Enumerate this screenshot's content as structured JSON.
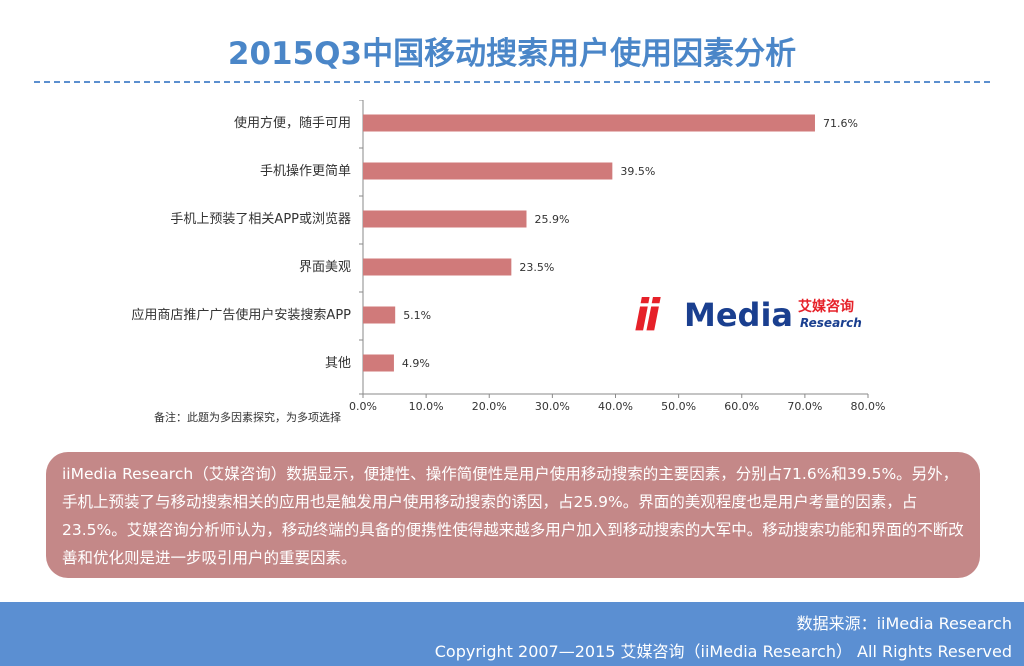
{
  "title": "2015Q3中国移动搜索用户使用因素分析",
  "chart_data": {
    "type": "bar",
    "orientation": "horizontal",
    "categories": [
      "使用方便，随手可用",
      "手机操作更简单",
      "手机上预装了相关APP或浏览器",
      "界面美观",
      "应用商店推广广告使用户安装搜索APP",
      "其他"
    ],
    "values": [
      71.6,
      39.5,
      25.9,
      23.5,
      5.1,
      4.9
    ],
    "value_labels": [
      "71.6%",
      "39.5%",
      "25.9%",
      "23.5%",
      "5.1%",
      "4.9%"
    ],
    "x_ticks": [
      "0.0%",
      "10.0%",
      "20.0%",
      "30.0%",
      "40.0%",
      "50.0%",
      "60.0%",
      "70.0%",
      "80.0%"
    ],
    "xlim": [
      0,
      80
    ],
    "bar_color": "#d07a7a",
    "grid": false,
    "legend": "none"
  },
  "note": "备注：此题为多因素探究，为多项选择",
  "logo": {
    "ii": "ii",
    "media": "Media",
    "cn": "艾媒咨询",
    "en": "Research"
  },
  "summary": "iiMedia Research（艾媒咨询）数据显示，便捷性、操作简便性是用户使用移动搜索的主要因素，分别占71.6%和39.5%。另外，手机上预装了与移动搜索相关的应用也是触发用户使用移动搜索的诱因，占25.9%。界面的美观程度也是用户考量的因素，占23.5%。艾媒咨询分析师认为，移动终端的具备的便携性使得越来越多用户加入到移动搜索的大军中。移动搜索功能和界面的不断改善和优化则是进一步吸引用户的重要因素。",
  "footer": {
    "source": "数据来源：iiMedia Research",
    "copyright": "Copyright 2007—2015 艾媒咨询（iiMedia Research） All Rights Reserved"
  },
  "colors": {
    "title": "#4a86c8",
    "summary_bg": "#c48888",
    "footer_bg": "#5b8fd2"
  }
}
